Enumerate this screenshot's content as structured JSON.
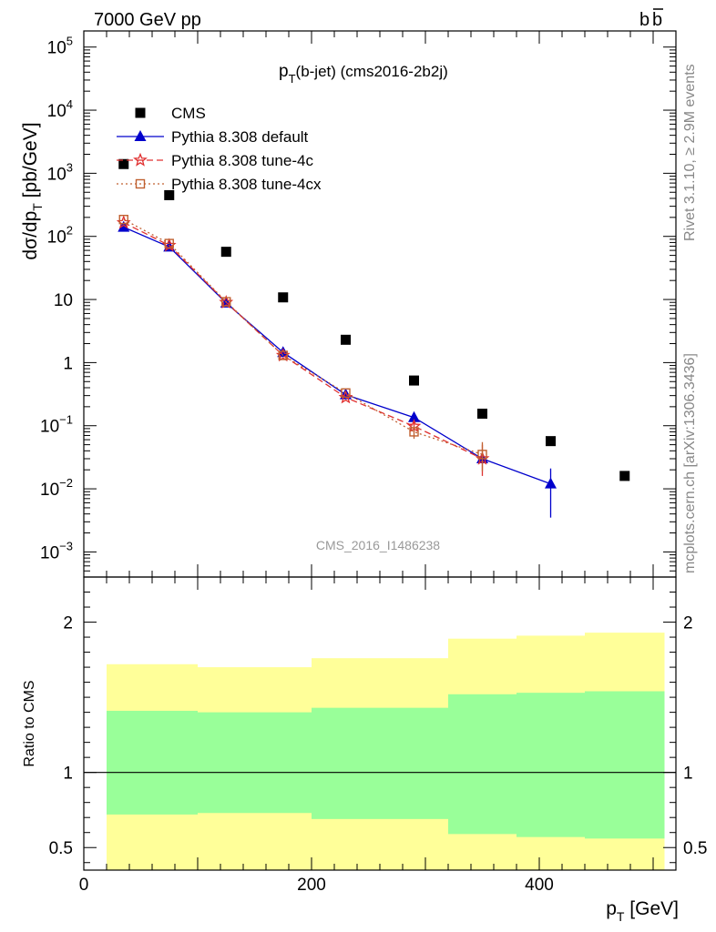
{
  "header": {
    "left": "7000 GeV pp",
    "right_b": "b",
    "right_bbar": "b"
  },
  "side_labels": {
    "rivet": "Rivet 3.1.10, ≥ 2.9M events",
    "mcplots": "mcplots.cern.ch [arXiv:1306.3436]"
  },
  "chart_data": {
    "type": "scatter",
    "title_main": "p",
    "title_sub": "T",
    "title_rest": "(b-jet) (cms2016-2b2j)",
    "watermark": "CMS_2016_I1486238",
    "x_axis": {
      "label_main": "p",
      "label_sub": "T",
      "label_rest": " [GeV]",
      "range": [
        0,
        520
      ],
      "ticks": [
        0,
        200,
        400
      ]
    },
    "y_axis": {
      "label_pre": "dσ/dp",
      "label_sub": "T",
      "label_post": " [pb/GeV]",
      "scale": "log",
      "range": [
        0.0004,
        180000
      ],
      "tick_labels": [
        {
          "v": 0.001,
          "base": "10",
          "exp": "−3"
        },
        {
          "v": 0.01,
          "base": "10",
          "exp": "−2"
        },
        {
          "v": 0.1,
          "base": "10",
          "exp": "−1"
        },
        {
          "v": 1,
          "base": "1",
          "exp": ""
        },
        {
          "v": 10,
          "base": "10",
          "exp": ""
        },
        {
          "v": 100,
          "base": "10",
          "exp": "2"
        },
        {
          "v": 1000,
          "base": "10",
          "exp": "3"
        },
        {
          "v": 10000,
          "base": "10",
          "exp": "4"
        },
        {
          "v": 100000,
          "base": "10",
          "exp": "5"
        }
      ]
    },
    "legend": {
      "placement": "top-left",
      "entries": [
        {
          "key": "cms",
          "label": "CMS"
        },
        {
          "key": "def",
          "label": "Pythia 8.308 default"
        },
        {
          "key": "t4c",
          "label": "Pythia 8.308 tune-4c"
        },
        {
          "key": "t4cx",
          "label": "Pythia 8.308 tune-4cx"
        }
      ]
    },
    "series": [
      {
        "key": "cms",
        "name": "CMS",
        "color": "#000000",
        "marker": "square",
        "x": [
          35,
          75,
          125,
          175,
          230,
          290,
          350,
          410,
          475
        ],
        "y": [
          1400,
          450,
          57,
          10.8,
          2.3,
          0.52,
          0.155,
          0.057,
          0.016
        ]
      },
      {
        "key": "def",
        "name": "Pythia 8.308 default",
        "color": "#0000cc",
        "marker": "triangle",
        "line": "solid",
        "x": [
          35,
          75,
          125,
          175,
          230,
          290,
          350,
          410
        ],
        "y": [
          140,
          68,
          8.8,
          1.45,
          0.31,
          0.135,
          0.03,
          0.012
        ],
        "err_lo": [
          0,
          0,
          0,
          0,
          0,
          0.02,
          0,
          0.0085
        ],
        "err_hi": [
          0,
          0,
          0,
          0,
          0,
          0.02,
          0,
          0.009
        ]
      },
      {
        "key": "t4c",
        "name": "Pythia 8.308 tune-4c",
        "color": "#e03030",
        "marker": "star",
        "line": "dashed",
        "x": [
          35,
          75,
          125,
          175,
          230,
          290,
          350
        ],
        "y": [
          165,
          72,
          9.0,
          1.3,
          0.28,
          0.098,
          0.03
        ],
        "err_lo": [
          0,
          0,
          0,
          0,
          0,
          0.02,
          0.014
        ],
        "err_hi": [
          0,
          0,
          0,
          0,
          0,
          0.02,
          0.02
        ]
      },
      {
        "key": "t4cx",
        "name": "Pythia 8.308 tune-4cx",
        "color": "#c06030",
        "marker": "open-square",
        "line": "dotted",
        "x": [
          35,
          75,
          125,
          175,
          230,
          290,
          350
        ],
        "y": [
          185,
          77,
          9.2,
          1.3,
          0.33,
          0.08,
          0.035
        ],
        "err_lo": [
          0,
          0,
          0,
          0,
          0,
          0.018,
          0.016
        ],
        "err_hi": [
          0,
          0,
          0,
          0,
          0,
          0.018,
          0.02
        ]
      }
    ],
    "ratio": {
      "ylabel": "Ratio to CMS",
      "range": [
        0.35,
        2.3
      ],
      "tick_labels": [
        {
          "v": 0.5,
          "text": "0.5"
        },
        {
          "v": 1,
          "text": "1"
        },
        {
          "v": 2,
          "text": "2"
        }
      ],
      "bands": [
        {
          "x0": 20,
          "x1": 100,
          "stat_lo": 0.72,
          "stat_hi": 1.41,
          "tot_lo": 0.35,
          "tot_hi": 1.72
        },
        {
          "x0": 100,
          "x1": 200,
          "stat_lo": 0.73,
          "stat_hi": 1.4,
          "tot_lo": 0.35,
          "tot_hi": 1.7
        },
        {
          "x0": 200,
          "x1": 320,
          "stat_lo": 0.69,
          "stat_hi": 1.43,
          "tot_lo": 0.35,
          "tot_hi": 1.76
        },
        {
          "x0": 320,
          "x1": 380,
          "stat_lo": 0.59,
          "stat_hi": 1.52,
          "tot_lo": 0.35,
          "tot_hi": 1.89
        },
        {
          "x0": 380,
          "x1": 440,
          "stat_lo": 0.57,
          "stat_hi": 1.53,
          "tot_lo": 0.35,
          "tot_hi": 1.91
        },
        {
          "x0": 440,
          "x1": 510,
          "stat_lo": 0.56,
          "stat_hi": 1.54,
          "tot_lo": 0.35,
          "tot_hi": 1.93
        }
      ],
      "colors": {
        "stat": "#99ff99",
        "total": "#ffff99"
      }
    }
  }
}
